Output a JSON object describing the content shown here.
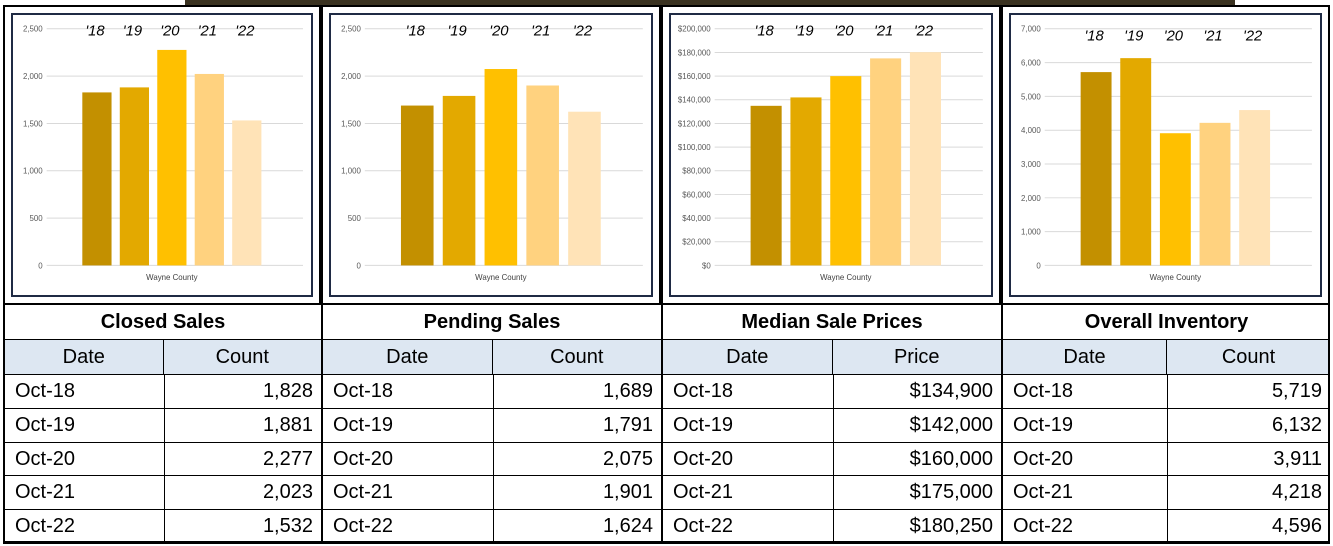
{
  "colors": {
    "bars": [
      "#c39000",
      "#e3a900",
      "#ffc000",
      "#ffd27f",
      "#ffe3b7"
    ],
    "grid": "#d9d9d9",
    "header_bg": "#dde7f2"
  },
  "chart_data": [
    {
      "type": "bar",
      "title": "Closed Sales",
      "xlabel": "Wayne County",
      "categories": [
        "'18",
        "'19",
        "'20",
        "'21",
        "'22"
      ],
      "values": [
        1828,
        1881,
        2277,
        2023,
        1532
      ],
      "ylim": [
        0,
        2500
      ],
      "yticks": [
        0,
        500,
        1000,
        1500,
        2000,
        2500
      ],
      "ytick_labels": [
        "0",
        "500",
        "1,000",
        "1,500",
        "2,000",
        "2,500"
      ]
    },
    {
      "type": "bar",
      "title": "Pending Sales",
      "xlabel": "Wayne County",
      "categories": [
        "'18",
        "'19",
        "'20",
        "'21",
        "'22"
      ],
      "values": [
        1689,
        1791,
        2075,
        1901,
        1624
      ],
      "ylim": [
        0,
        2500
      ],
      "yticks": [
        0,
        500,
        1000,
        1500,
        2000,
        2500
      ],
      "ytick_labels": [
        "0",
        "500",
        "1,000",
        "1,500",
        "2,000",
        "2,500"
      ]
    },
    {
      "type": "bar",
      "title": "Median Sale Prices",
      "xlabel": "Wayne County",
      "categories": [
        "'18",
        "'19",
        "'20",
        "'21",
        "'22"
      ],
      "values": [
        134900,
        142000,
        160000,
        175000,
        180250
      ],
      "ylim": [
        0,
        200000
      ],
      "yticks": [
        0,
        20000,
        40000,
        60000,
        80000,
        100000,
        120000,
        140000,
        160000,
        180000,
        200000
      ],
      "ytick_labels": [
        "$0",
        "$20,000",
        "$40,000",
        "$60,000",
        "$80,000",
        "$100,000",
        "$120,000",
        "$140,000",
        "$160,000",
        "$180,000",
        "$200,000"
      ]
    },
    {
      "type": "bar",
      "title": "Overall Inventory",
      "xlabel": "Wayne County",
      "categories": [
        "'18",
        "'19",
        "'20",
        "'21",
        "'22"
      ],
      "values": [
        5719,
        6132,
        3911,
        4218,
        4596
      ],
      "ylim": [
        0,
        7000
      ],
      "yticks": [
        0,
        1000,
        2000,
        3000,
        4000,
        5000,
        6000,
        7000
      ],
      "ytick_labels": [
        "0",
        "1,000",
        "2,000",
        "3,000",
        "4,000",
        "5,000",
        "6,000",
        "7,000"
      ]
    }
  ],
  "tables": [
    {
      "title": "Closed Sales",
      "col1": "Date",
      "col2": "Count",
      "rows": [
        {
          "date": "Oct-18",
          "value": "1,828"
        },
        {
          "date": "Oct-19",
          "value": "1,881"
        },
        {
          "date": "Oct-20",
          "value": "2,277"
        },
        {
          "date": "Oct-21",
          "value": "2,023"
        },
        {
          "date": "Oct-22",
          "value": "1,532"
        }
      ]
    },
    {
      "title": "Pending Sales",
      "col1": "Date",
      "col2": "Count",
      "rows": [
        {
          "date": "Oct-18",
          "value": "1,689"
        },
        {
          "date": "Oct-19",
          "value": "1,791"
        },
        {
          "date": "Oct-20",
          "value": "2,075"
        },
        {
          "date": "Oct-21",
          "value": "1,901"
        },
        {
          "date": "Oct-22",
          "value": "1,624"
        }
      ]
    },
    {
      "title": "Median Sale Prices",
      "col1": "Date",
      "col2": "Price",
      "rows": [
        {
          "date": "Oct-18",
          "value": "$134,900"
        },
        {
          "date": "Oct-19",
          "value": "$142,000"
        },
        {
          "date": "Oct-20",
          "value": "$160,000"
        },
        {
          "date": "Oct-21",
          "value": "$175,000"
        },
        {
          "date": "Oct-22",
          "value": "$180,250"
        }
      ]
    },
    {
      "title": "Overall Inventory",
      "col1": "Date",
      "col2": "Count",
      "rows": [
        {
          "date": "Oct-18",
          "value": "5,719"
        },
        {
          "date": "Oct-19",
          "value": "6,132"
        },
        {
          "date": "Oct-20",
          "value": "3,911"
        },
        {
          "date": "Oct-21",
          "value": "4,218"
        },
        {
          "date": "Oct-22",
          "value": "4,596"
        }
      ]
    }
  ]
}
